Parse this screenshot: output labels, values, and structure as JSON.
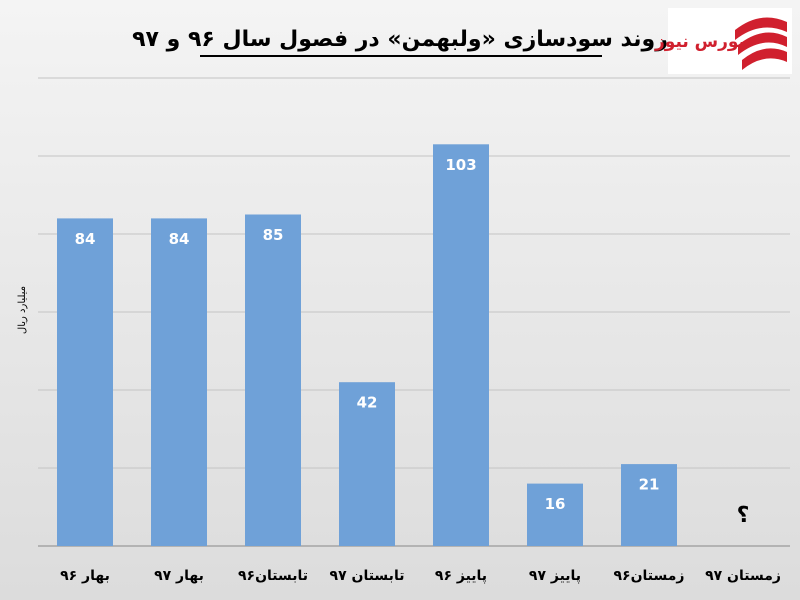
{
  "chart_data": {
    "type": "bar",
    "title": "روند سودسازی «ولبهمن» در فصول سال ۹۶ و ۹۷",
    "logo": "بورس نیوز",
    "y_label": "میلیارد ریال",
    "categories": [
      "بهار ۹۶",
      "بهار ۹۷",
      "تابستان۹۶",
      "تابستان ۹۷",
      "پاییز ۹۶",
      "پاییز ۹۷",
      "زمستان۹۶",
      "زمستان ۹۷"
    ],
    "values": [
      84,
      84,
      85,
      42,
      103,
      16,
      21,
      null
    ],
    "annotation": "؟",
    "color": "#6fa1d8",
    "ylim": [
      0,
      120
    ],
    "yticks": [
      0,
      20,
      40,
      60,
      80,
      100,
      120
    ],
    "grid": true
  }
}
